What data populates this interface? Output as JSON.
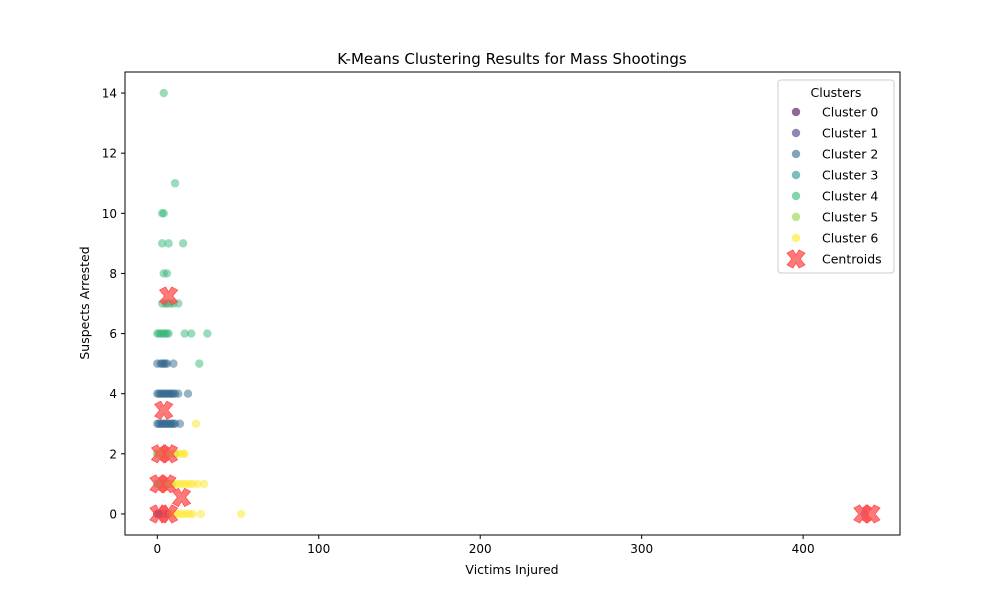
{
  "chart_data": {
    "type": "scatter",
    "title": "K-Means Clustering Results for Mass Shootings",
    "xlabel": "Victims Injured",
    "ylabel": "Suspects Arrested",
    "xlim": [
      -20,
      460
    ],
    "ylim": [
      -0.7,
      14.7
    ],
    "xticks": [
      0,
      100,
      200,
      300,
      400
    ],
    "yticks": [
      0,
      2,
      4,
      6,
      8,
      10,
      12,
      14
    ],
    "grid": false,
    "legend": {
      "title": "Clusters",
      "placement": "top-right"
    },
    "series": [
      {
        "name": "Cluster 0",
        "color": "#440154",
        "points": [
          [
            0,
            0
          ],
          [
            1,
            0
          ],
          [
            2,
            0
          ],
          [
            3,
            0
          ],
          [
            4,
            0
          ],
          [
            5,
            0
          ],
          [
            6,
            0
          ],
          [
            7,
            0
          ]
        ]
      },
      {
        "name": "Cluster 1",
        "color": "#443983",
        "points": [
          [
            0,
            0
          ],
          [
            1,
            0
          ],
          [
            2,
            0
          ],
          [
            3,
            0
          ]
        ]
      },
      {
        "name": "Cluster 2",
        "color": "#31688e",
        "points": [
          [
            0,
            3
          ],
          [
            1,
            3
          ],
          [
            2,
            3
          ],
          [
            3,
            3
          ],
          [
            4,
            3
          ],
          [
            5,
            3
          ],
          [
            6,
            3
          ],
          [
            7,
            3
          ],
          [
            8,
            3
          ],
          [
            9,
            3
          ],
          [
            10,
            3
          ],
          [
            11,
            3
          ],
          [
            14,
            3
          ],
          [
            0,
            4
          ],
          [
            1,
            4
          ],
          [
            2,
            4
          ],
          [
            3,
            4
          ],
          [
            4,
            4
          ],
          [
            5,
            4
          ],
          [
            6,
            4
          ],
          [
            7,
            4
          ],
          [
            8,
            4
          ],
          [
            9,
            4
          ],
          [
            10,
            4
          ],
          [
            11,
            4
          ],
          [
            13,
            4
          ],
          [
            19,
            4
          ],
          [
            0,
            5
          ],
          [
            2,
            5
          ],
          [
            3,
            5
          ],
          [
            4,
            5
          ],
          [
            5,
            5
          ],
          [
            6,
            5
          ],
          [
            10,
            5
          ]
        ]
      },
      {
        "name": "Cluster 3",
        "color": "#21918c",
        "points": [
          [
            0,
            1
          ],
          [
            1,
            1
          ],
          [
            2,
            1
          ],
          [
            3,
            1
          ],
          [
            4,
            1
          ],
          [
            5,
            1
          ],
          [
            6,
            1
          ],
          [
            7,
            1
          ],
          [
            8,
            1
          ]
        ]
      },
      {
        "name": "Cluster 4",
        "color": "#35b779",
        "points": [
          [
            4,
            14
          ],
          [
            11,
            11
          ],
          [
            3,
            10
          ],
          [
            4,
            10
          ],
          [
            3,
            9
          ],
          [
            7,
            9
          ],
          [
            16,
            9
          ],
          [
            4,
            8
          ],
          [
            6,
            8
          ],
          [
            3,
            7
          ],
          [
            5,
            7
          ],
          [
            6,
            7
          ],
          [
            8,
            7
          ],
          [
            10,
            7
          ],
          [
            13,
            7
          ],
          [
            0,
            6
          ],
          [
            1,
            6
          ],
          [
            2,
            6
          ],
          [
            3,
            6
          ],
          [
            4,
            6
          ],
          [
            5,
            6
          ],
          [
            6,
            6
          ],
          [
            7,
            6
          ],
          [
            17,
            6
          ],
          [
            21,
            6
          ],
          [
            31,
            6
          ],
          [
            26,
            5
          ],
          [
            0,
            2
          ],
          [
            2,
            2
          ],
          [
            3,
            2
          ],
          [
            6,
            2
          ],
          [
            11,
            2
          ],
          [
            1,
            1
          ],
          [
            2,
            1
          ],
          [
            4,
            1
          ],
          [
            9,
            1
          ]
        ]
      },
      {
        "name": "Cluster 5",
        "color": "#90d743",
        "points": [
          [
            0,
            2
          ],
          [
            1,
            2
          ],
          [
            2,
            2
          ],
          [
            3,
            2
          ],
          [
            4,
            2
          ],
          [
            5,
            2
          ],
          [
            6,
            2
          ],
          [
            8,
            2
          ],
          [
            1,
            1
          ],
          [
            3,
            1
          ],
          [
            5,
            1
          ]
        ]
      },
      {
        "name": "Cluster 6",
        "color": "#fde725",
        "points": [
          [
            24,
            3
          ],
          [
            10,
            2
          ],
          [
            12,
            2
          ],
          [
            14,
            2
          ],
          [
            16,
            2
          ],
          [
            17,
            2
          ],
          [
            8,
            1
          ],
          [
            10,
            1
          ],
          [
            12,
            1
          ],
          [
            14,
            1
          ],
          [
            16,
            1
          ],
          [
            18,
            1
          ],
          [
            20,
            1
          ],
          [
            22,
            1
          ],
          [
            25,
            1
          ],
          [
            29,
            1
          ],
          [
            8,
            0
          ],
          [
            10,
            0
          ],
          [
            12,
            0
          ],
          [
            14,
            0
          ],
          [
            16,
            0
          ],
          [
            18,
            0
          ],
          [
            20,
            0
          ],
          [
            22,
            0
          ],
          [
            27,
            0
          ],
          [
            52,
            0
          ]
        ]
      },
      {
        "name": "Cluster 0",
        "color": "#440154",
        "points": [
          [
            438,
            0
          ]
        ],
        "legend": false
      }
    ],
    "centroids": {
      "name": "Centroids",
      "color": "#ff4d4d",
      "points": [
        [
          7,
          7.25
        ],
        [
          4,
          3.45
        ],
        [
          2,
          2
        ],
        [
          7,
          2
        ],
        [
          1,
          1
        ],
        [
          6,
          1
        ],
        [
          15,
          0.55
        ],
        [
          1,
          0
        ],
        [
          7,
          0
        ],
        [
          437,
          0
        ],
        [
          442,
          0
        ]
      ]
    }
  }
}
